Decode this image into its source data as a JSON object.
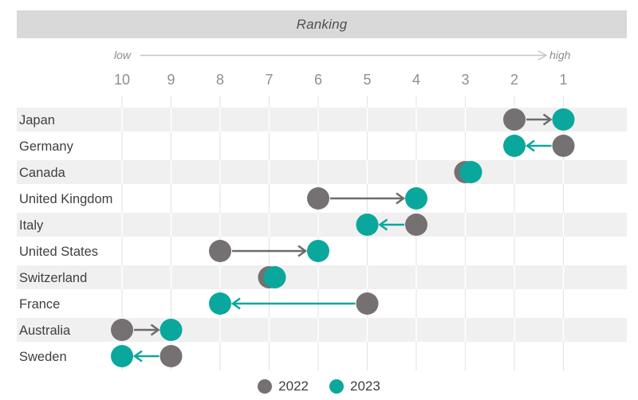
{
  "header": {
    "title": "Ranking"
  },
  "axis": {
    "low_label": "low",
    "high_label": "high",
    "ticks": [
      10,
      9,
      8,
      7,
      6,
      5,
      4,
      3,
      2,
      1
    ]
  },
  "legend": {
    "items": [
      {
        "label": "2022",
        "color": "#757071"
      },
      {
        "label": "2023",
        "color": "#0aa79d"
      }
    ]
  },
  "colors": {
    "year2022": "#757071",
    "year2023": "#0aa79d",
    "arrow_improve": "#6f6b6c",
    "arrow_decline": "#0aa79d",
    "band": "#f0f0f0",
    "header_bg": "#d9d9d9",
    "gridline": "#e5e5e5",
    "axis_text": "#8f8f8f",
    "label_text": "#3f3f3f",
    "range_arrow_line": "#c6c6c6"
  },
  "chart_data": {
    "type": "scatter",
    "subtype": "arrow-dot-plot (ranking change)",
    "title": "Ranking",
    "x_axis": {
      "low_label": "low",
      "high_label": "high",
      "ticks": [
        10,
        9,
        8,
        7,
        6,
        5,
        4,
        3,
        2,
        1
      ],
      "reversed": true,
      "range": [
        10,
        1
      ]
    },
    "grid": "vertical",
    "legend_position": "bottom",
    "categories": [
      "Japan",
      "Germany",
      "Canada",
      "United Kingdom",
      "Italy",
      "United States",
      "Switzerland",
      "France",
      "Australia",
      "Sweden"
    ],
    "series": [
      {
        "name": "2022",
        "color": "#757071",
        "values": [
          2,
          1,
          3,
          6,
          4,
          8,
          7,
          5,
          10,
          9
        ]
      },
      {
        "name": "2023",
        "color": "#0aa79d",
        "values": [
          1,
          2,
          3,
          4,
          5,
          6,
          7,
          8,
          9,
          10
        ]
      }
    ]
  }
}
